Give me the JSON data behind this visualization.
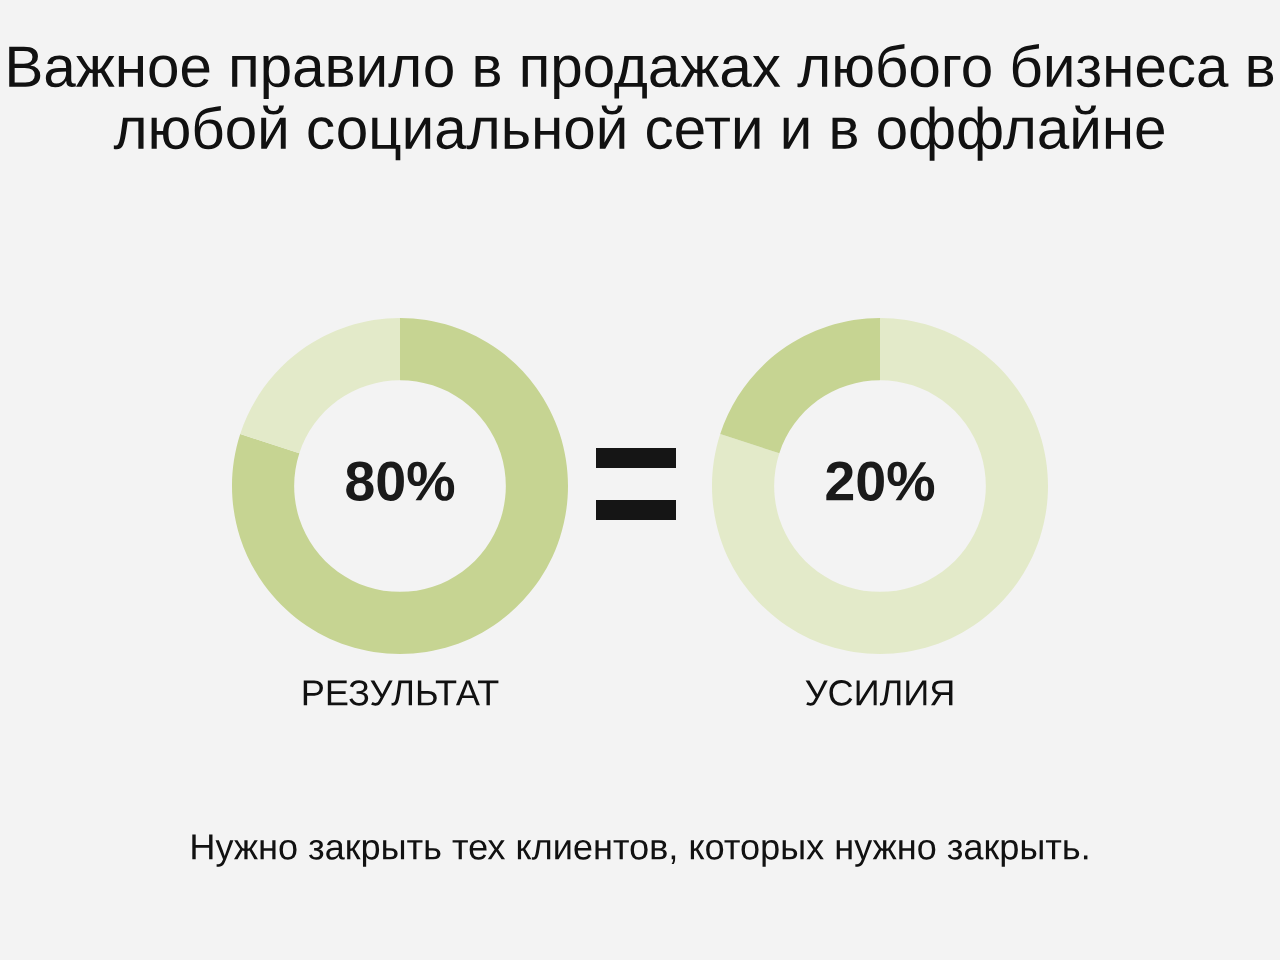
{
  "chart_data": [
    {
      "type": "donut",
      "title": "Важное правило в продажах любого бизнеса в любой социальной сети и в оффлайне",
      "xlabel": "РЕЗУЛЬТАТ",
      "categories": [
        null,
        null
      ],
      "values": [
        80,
        20
      ],
      "colors": [
        "#c6d492",
        "#e3eac9"
      ],
      "value_labels": [
        "80%",
        null
      ],
      "annotations": [
        "Нужно закрыть тех клиентов, которых нужно закрыть."
      ]
    },
    {
      "type": "donut",
      "xlabel": "УСИЛИЯ",
      "categories": [
        null,
        null
      ],
      "values": [
        80,
        20
      ],
      "colors": [
        "#e3eac9",
        "#c6d492"
      ],
      "value_labels": [
        null,
        "20%"
      ]
    }
  ]
}
